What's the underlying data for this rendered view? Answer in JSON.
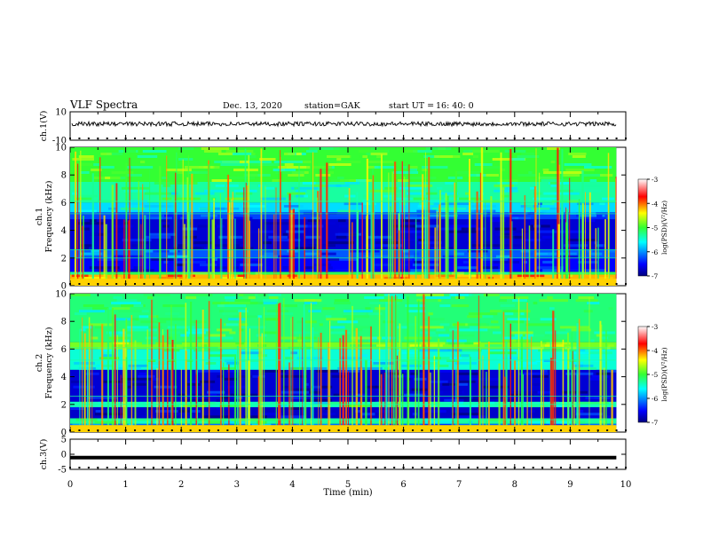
{
  "header": {
    "title": "VLF Spectra",
    "date": "Dec. 13, 2020",
    "station": "station=GAK",
    "start_label": "start  UT  =",
    "start_time": "16: 40: 0"
  },
  "chart_data": {
    "type": "heatmap",
    "xlabel": "Time (min)",
    "x_ticks": [
      "0",
      "1",
      "2",
      "3",
      "4",
      "5",
      "6",
      "7",
      "8",
      "9",
      "10"
    ],
    "xlim": [
      0,
      10
    ],
    "data_end_min": 9.83,
    "panels": [
      {
        "id": "ch1-waveform",
        "type": "line",
        "ylabel": "ch.1(V)",
        "y_ticks": [
          "10",
          "-10"
        ],
        "ylim": [
          -10,
          10
        ],
        "trace_level_v": 1.5,
        "trace_amplitude_v": 3
      },
      {
        "id": "ch1-spectrogram",
        "type": "heatmap",
        "ylabel": "ch.1 Frequency (kHz)",
        "y_ticks": [
          "0",
          "2",
          "4",
          "6",
          "8",
          "10"
        ],
        "ylim": [
          0,
          10
        ],
        "bands_khz": [
          {
            "from": 0,
            "to": 0.3,
            "level": 0.82
          },
          {
            "from": 0.3,
            "to": 0.8,
            "level": 0.7
          },
          {
            "from": 0.8,
            "to": 1.0,
            "level": 0.5
          },
          {
            "from": 1.0,
            "to": 2.0,
            "level": 0.12
          },
          {
            "from": 2.0,
            "to": 2.6,
            "level": 0.2
          },
          {
            "from": 2.6,
            "to": 4.8,
            "level": 0.08
          },
          {
            "from": 4.8,
            "to": 5.3,
            "level": 0.18
          },
          {
            "from": 5.3,
            "to": 6.0,
            "level": 0.32
          },
          {
            "from": 6.0,
            "to": 7.5,
            "level": 0.42
          },
          {
            "from": 7.5,
            "to": 10,
            "level": 0.5
          }
        ],
        "colorbar": {
          "label": "log(PSD)(V²/Hz)",
          "ticks": [
            "-3",
            "-4",
            "-5",
            "-6",
            "-7"
          ],
          "range": [
            -7,
            -3
          ]
        }
      },
      {
        "id": "ch2-spectrogram",
        "type": "heatmap",
        "ylabel": "ch.2 Frequency (kHz)",
        "y_ticks": [
          "0",
          "2",
          "4",
          "6",
          "8",
          "10"
        ],
        "ylim": [
          0,
          10
        ],
        "bands_khz": [
          {
            "from": 0,
            "to": 0.4,
            "level": 0.6
          },
          {
            "from": 0.4,
            "to": 0.6,
            "level": 0.22
          },
          {
            "from": 0.6,
            "to": 1.0,
            "level": 0.42
          },
          {
            "from": 1.0,
            "to": 1.8,
            "level": 0.07
          },
          {
            "from": 1.8,
            "to": 2.2,
            "level": 0.4
          },
          {
            "from": 2.2,
            "to": 4.5,
            "level": 0.08
          },
          {
            "from": 4.5,
            "to": 6.0,
            "level": 0.38
          },
          {
            "from": 6.0,
            "to": 6.5,
            "level": 0.55
          },
          {
            "from": 6.5,
            "to": 10,
            "level": 0.45
          }
        ],
        "colorbar": {
          "label": "log(PSD)(V²/Hz)",
          "ticks": [
            "-3",
            "-4",
            "-5",
            "-6",
            "-7"
          ],
          "range": [
            -7,
            -3
          ]
        }
      },
      {
        "id": "ch3-waveform",
        "type": "line",
        "ylabel": "ch.3(V)",
        "y_ticks": [
          "5",
          "0",
          "-5"
        ],
        "ylim": [
          -5,
          5
        ],
        "trace_level_v": -1.1
      }
    ]
  }
}
